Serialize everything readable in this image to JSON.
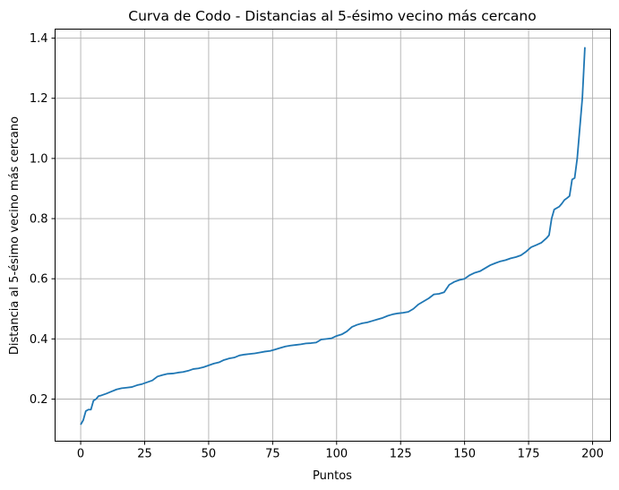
{
  "chart_data": {
    "type": "line",
    "title": "Curva de Codo - Distancias al 5-ésimo vecino más cercano",
    "xlabel": "Puntos",
    "ylabel": "Distancia al 5-ésimo vecino más cercano",
    "xlim": [
      -10,
      207
    ],
    "ylim": [
      0.06,
      1.43
    ],
    "xticks": [
      0,
      25,
      50,
      75,
      100,
      125,
      150,
      175,
      200
    ],
    "xtick_labels": [
      "0",
      "25",
      "50",
      "75",
      "100",
      "125",
      "150",
      "175",
      "200"
    ],
    "yticks": [
      0.2,
      0.4,
      0.6,
      0.8,
      1.0,
      1.2,
      1.4
    ],
    "ytick_labels": [
      "0.2",
      "0.4",
      "0.6",
      "0.8",
      "1.0",
      "1.2",
      "1.4"
    ],
    "grid": true,
    "line_color": "#1f77b4",
    "grid_color": "#b0b0b0",
    "series": [
      {
        "x": [
          0,
          1,
          2,
          3,
          4,
          5,
          6,
          7,
          8,
          10,
          12,
          14,
          16,
          18,
          20,
          22,
          24,
          26,
          28,
          30,
          32,
          34,
          36,
          38,
          40,
          42,
          44,
          46,
          48,
          50,
          52,
          54,
          56,
          58,
          60,
          62,
          64,
          66,
          68,
          70,
          72,
          74,
          76,
          78,
          80,
          82,
          84,
          86,
          88,
          90,
          92,
          94,
          96,
          98,
          100,
          102,
          104,
          106,
          108,
          110,
          112,
          114,
          116,
          118,
          120,
          122,
          124,
          126,
          128,
          130,
          132,
          134,
          136,
          138,
          140,
          142,
          144,
          145,
          146,
          148,
          150,
          152,
          154,
          156,
          158,
          160,
          162,
          164,
          166,
          168,
          170,
          172,
          174,
          176,
          178,
          180,
          182,
          183,
          184,
          185,
          186,
          187,
          188,
          189,
          190,
          191,
          192,
          193,
          194,
          195,
          196,
          197
        ],
        "y": [
          0.115,
          0.13,
          0.16,
          0.165,
          0.165,
          0.195,
          0.2,
          0.21,
          0.212,
          0.218,
          0.225,
          0.232,
          0.236,
          0.238,
          0.24,
          0.246,
          0.25,
          0.256,
          0.262,
          0.275,
          0.28,
          0.284,
          0.285,
          0.288,
          0.29,
          0.294,
          0.3,
          0.302,
          0.306,
          0.312,
          0.318,
          0.322,
          0.33,
          0.335,
          0.338,
          0.345,
          0.348,
          0.35,
          0.352,
          0.355,
          0.358,
          0.36,
          0.365,
          0.37,
          0.375,
          0.378,
          0.38,
          0.382,
          0.385,
          0.386,
          0.388,
          0.398,
          0.4,
          0.402,
          0.41,
          0.415,
          0.425,
          0.44,
          0.447,
          0.452,
          0.455,
          0.46,
          0.465,
          0.47,
          0.477,
          0.482,
          0.485,
          0.487,
          0.49,
          0.5,
          0.515,
          0.525,
          0.535,
          0.548,
          0.55,
          0.555,
          0.58,
          0.585,
          0.59,
          0.596,
          0.6,
          0.612,
          0.62,
          0.625,
          0.635,
          0.645,
          0.652,
          0.658,
          0.662,
          0.668,
          0.672,
          0.678,
          0.69,
          0.705,
          0.712,
          0.72,
          0.735,
          0.745,
          0.8,
          0.83,
          0.835,
          0.84,
          0.85,
          0.862,
          0.868,
          0.875,
          0.93,
          0.935,
          1.0,
          1.1,
          1.2,
          1.37
        ]
      }
    ]
  }
}
